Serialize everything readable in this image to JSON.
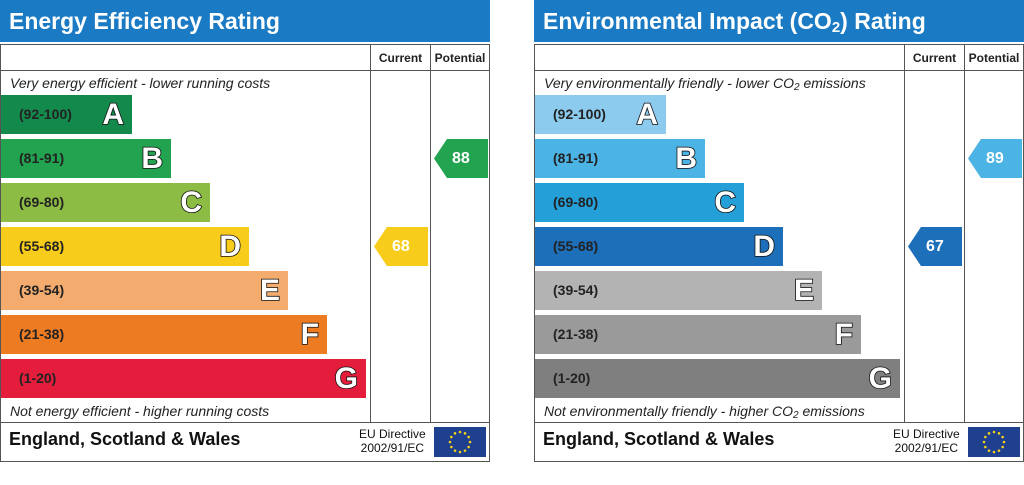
{
  "header_labels": {
    "current": "Current",
    "potential": "Potential"
  },
  "footer": {
    "region": "England, Scotland & Wales",
    "directive_line1": "EU Directive",
    "directive_line2": "2002/91/EC"
  },
  "icons": {
    "flag": "eu-flag-icon"
  },
  "bands": [
    {
      "range": "(92-100)",
      "letter": "A"
    },
    {
      "range": "(81-91)",
      "letter": "B"
    },
    {
      "range": "(69-80)",
      "letter": "C"
    },
    {
      "range": "(55-68)",
      "letter": "D"
    },
    {
      "range": "(39-54)",
      "letter": "E"
    },
    {
      "range": "(21-38)",
      "letter": "F"
    },
    {
      "range": "(1-20)",
      "letter": "G"
    }
  ],
  "chart_data": [
    {
      "type": "bar",
      "title": "Energy Efficiency Rating",
      "top_note": "Very energy efficient - lower running costs",
      "bottom_note": "Not energy efficient - higher running costs",
      "band_colors": [
        "#138a4c",
        "#22a34f",
        "#8cbc43",
        "#f7cc1b",
        "#f3ab6e",
        "#ec7b22",
        "#e31d3b"
      ],
      "current": {
        "value": 68,
        "band": "D",
        "color": "#f7cc1b"
      },
      "potential": {
        "value": 88,
        "band": "B",
        "color": "#22a34f"
      }
    },
    {
      "type": "bar",
      "title_main": "Environmental Impact (CO",
      "title_sub": "2",
      "title_end": ") Rating",
      "top_note_main": "Very environmentally friendly - lower CO",
      "top_note_sub": "2",
      "top_note_end": " emissions",
      "bottom_note_main": "Not environmentally friendly - higher CO",
      "bottom_note_sub": "2",
      "bottom_note_end": " emissions",
      "band_colors": [
        "#8ccbee",
        "#4cb3e5",
        "#249fd8",
        "#1c6fb8",
        "#b3b3b3",
        "#9a9a9a",
        "#7f7f7f"
      ],
      "current": {
        "value": 67,
        "band": "D",
        "color": "#1c6fb8"
      },
      "potential": {
        "value": 89,
        "band": "B",
        "color": "#4cb3e5"
      }
    }
  ]
}
